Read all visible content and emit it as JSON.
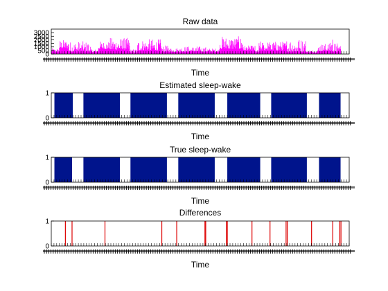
{
  "figure": {
    "background": "#ffffff",
    "axes_color": "#000000"
  },
  "chart_data": [
    {
      "type": "area",
      "title": "Raw data",
      "xlabel": "Time",
      "ylabel": "",
      "ylim": [
        0,
        3500
      ],
      "yticks": [
        0,
        500,
        1000,
        1500,
        2000,
        2500,
        3000
      ],
      "ytick_labels": [
        "0",
        "500",
        "1000",
        "1500",
        "2000",
        "2500",
        "3000"
      ],
      "xtick_labels_legible": false,
      "color": "#ff00ff",
      "segments": [
        {
          "x0": 0.0,
          "x1": 0.2,
          "base": 250,
          "peak": 800
        },
        {
          "x0": 0.2,
          "x1": 0.45,
          "base": 800,
          "peak": 2000
        },
        {
          "x0": 0.45,
          "x1": 1.0,
          "base": 300,
          "peak": 1800
        },
        {
          "x0": 1.0,
          "x1": 1.2,
          "base": 250,
          "peak": 700
        },
        {
          "x0": 1.2,
          "x1": 1.5,
          "base": 700,
          "peak": 1800
        },
        {
          "x0": 1.5,
          "x1": 2.0,
          "base": 600,
          "peak": 2300
        },
        {
          "x0": 2.0,
          "x1": 2.2,
          "base": 200,
          "peak": 700
        },
        {
          "x0": 2.2,
          "x1": 2.8,
          "base": 500,
          "peak": 2100
        },
        {
          "x0": 2.8,
          "x1": 3.0,
          "base": 300,
          "peak": 1200
        },
        {
          "x0": 3.0,
          "x1": 3.3,
          "base": 300,
          "peak": 900
        },
        {
          "x0": 3.3,
          "x1": 3.8,
          "base": 300,
          "peak": 1100
        },
        {
          "x0": 3.8,
          "x1": 4.0,
          "base": 300,
          "peak": 1000
        },
        {
          "x0": 4.0,
          "x1": 4.3,
          "base": 300,
          "peak": 800
        },
        {
          "x0": 4.3,
          "x1": 4.9,
          "base": 700,
          "peak": 2500
        },
        {
          "x0": 4.9,
          "x1": 5.2,
          "base": 500,
          "peak": 1200
        },
        {
          "x0": 5.2,
          "x1": 5.3,
          "base": 200,
          "peak": 600
        },
        {
          "x0": 5.3,
          "x1": 6.0,
          "base": 500,
          "peak": 1800
        },
        {
          "x0": 6.0,
          "x1": 6.5,
          "base": 300,
          "peak": 2200
        },
        {
          "x0": 6.5,
          "x1": 6.8,
          "base": 200,
          "peak": 600
        },
        {
          "x0": 6.8,
          "x1": 7.1,
          "base": 400,
          "peak": 1500
        },
        {
          "x0": 7.1,
          "x1": 7.2,
          "base": 300,
          "peak": 2700
        },
        {
          "x0": 7.2,
          "x1": 7.4,
          "base": 300,
          "peak": 1600
        }
      ],
      "xlim": [
        0,
        7.6
      ]
    },
    {
      "type": "area",
      "title": "Estimated sleep-wake",
      "xlabel": "Time",
      "ylim": [
        0,
        1
      ],
      "yticks": [
        0,
        1
      ],
      "ytick_labels": [
        "0",
        "1"
      ],
      "xlim": [
        0,
        7.6
      ],
      "xtick_labels_legible": false,
      "color": "#00148c",
      "wake_intervals": [
        [
          0,
          0.08
        ],
        [
          0.55,
          0.82
        ],
        [
          1.75,
          2.02
        ],
        [
          2.95,
          3.24
        ],
        [
          4.17,
          4.49
        ],
        [
          5.33,
          5.61
        ],
        [
          6.52,
          6.83
        ],
        [
          7.38,
          7.6
        ]
      ]
    },
    {
      "type": "area",
      "title": "True sleep-wake",
      "xlabel": "Time",
      "ylim": [
        0,
        1
      ],
      "yticks": [
        0,
        1
      ],
      "ytick_labels": [
        "0",
        "1"
      ],
      "xlim": [
        0,
        7.6
      ],
      "xtick_labels_legible": false,
      "color": "#00148c",
      "wake_intervals": [
        [
          0,
          0.08
        ],
        [
          0.53,
          0.82
        ],
        [
          1.75,
          2.02
        ],
        [
          2.95,
          3.24
        ],
        [
          4.17,
          4.49
        ],
        [
          5.33,
          5.61
        ],
        [
          6.52,
          6.83
        ],
        [
          7.38,
          7.6
        ]
      ]
    },
    {
      "type": "line",
      "title": "Differences",
      "xlabel": "Time",
      "ylim": [
        0,
        1
      ],
      "yticks": [
        0,
        1
      ],
      "ytick_labels": [
        "0",
        "1"
      ],
      "xlim": [
        0,
        7.6
      ],
      "xtick_labels_legible": false,
      "color": "#dd0000",
      "events": [
        0.36,
        0.53,
        1.37,
        2.82,
        3.2,
        3.92,
        3.94,
        4.47,
        4.49,
        5.12,
        5.58,
        5.99,
        6.02,
        6.64,
        7.18,
        7.36,
        7.39
      ]
    }
  ]
}
